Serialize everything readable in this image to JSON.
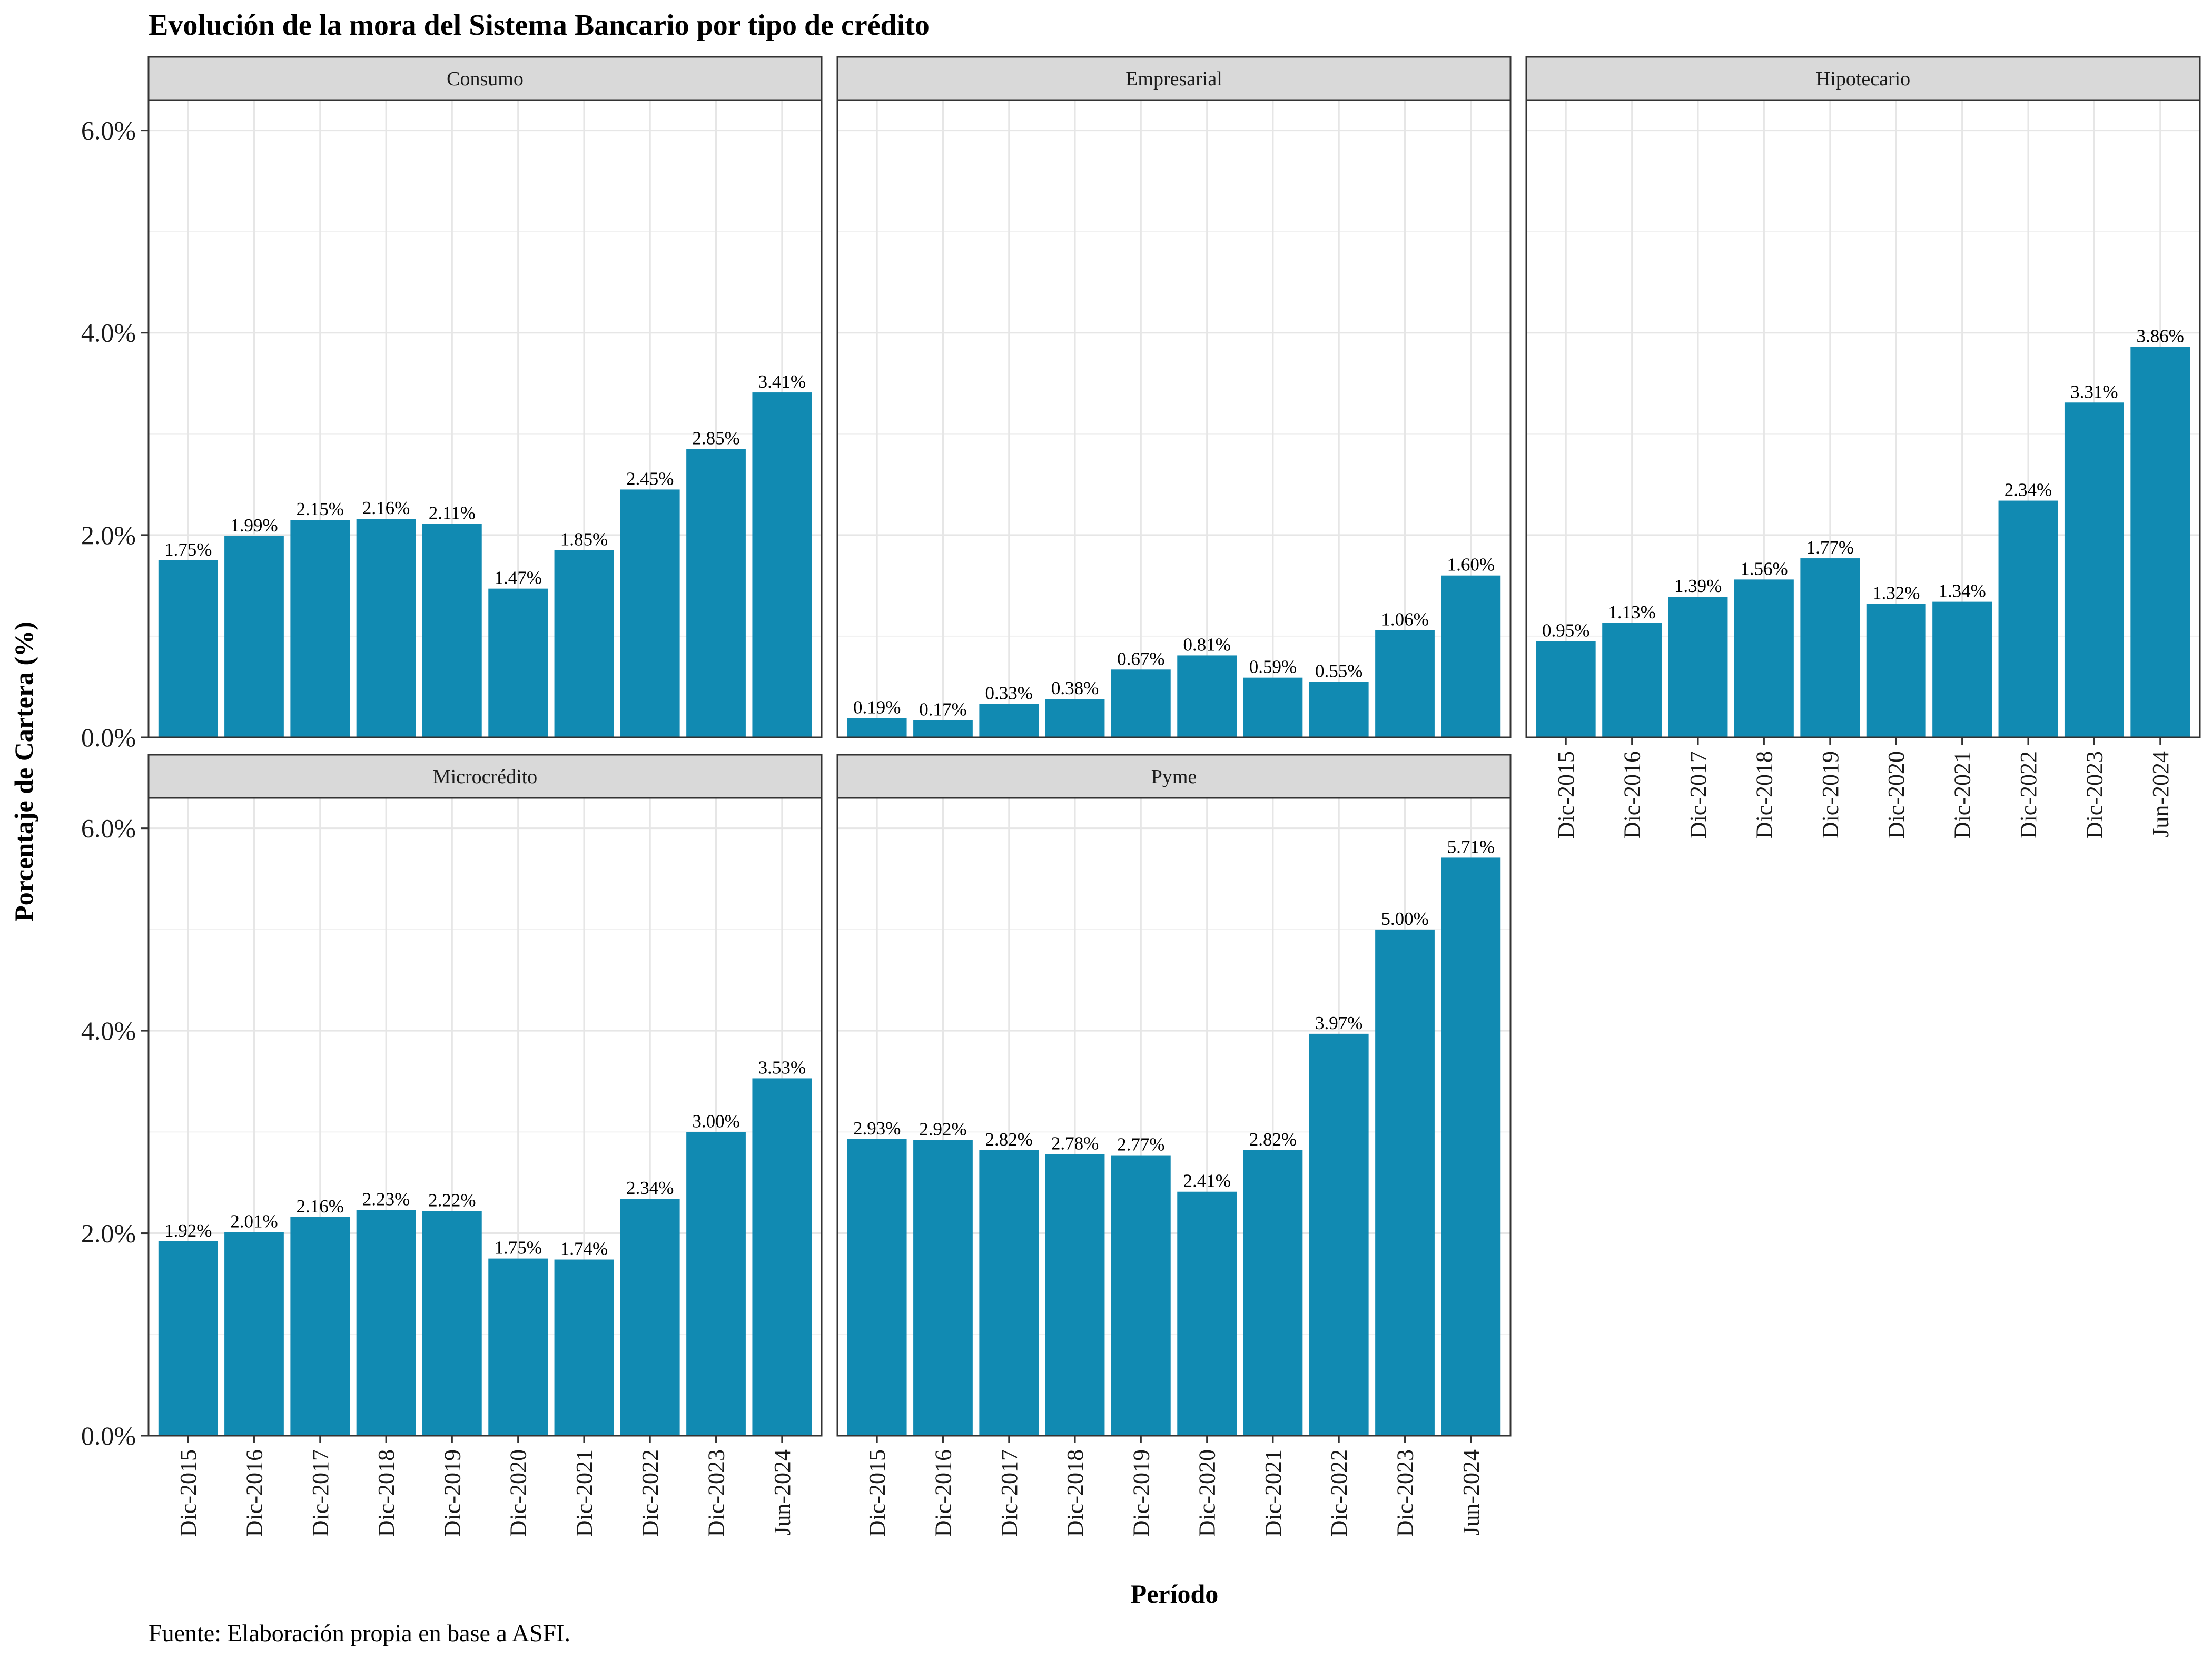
{
  "chart_data": {
    "type": "bar",
    "title": "Evolución de la mora del Sistema Bancario por tipo de crédito",
    "xlabel": "Período",
    "ylabel": "Porcentaje de Cartera (%)",
    "caption": "Fuente: Elaboración propia en base a ASFI.",
    "categories": [
      "Dic-2015",
      "Dic-2016",
      "Dic-2017",
      "Dic-2018",
      "Dic-2019",
      "Dic-2020",
      "Dic-2021",
      "Dic-2022",
      "Dic-2023",
      "Jun-2024"
    ],
    "ylim": [
      0,
      6.3
    ],
    "yticks": [
      0,
      2,
      4,
      6
    ],
    "ytick_labels": [
      "0.0%",
      "2.0%",
      "4.0%",
      "6.0%"
    ],
    "grid": true,
    "bar_color": "#118AB2",
    "strip_color": "#D9D9D9",
    "facets": [
      {
        "name": "Consumo",
        "values": [
          1.75,
          1.99,
          2.15,
          2.16,
          2.11,
          1.47,
          1.85,
          2.45,
          2.85,
          3.41
        ],
        "labels": [
          "1.75%",
          "1.99%",
          "2.15%",
          "2.16%",
          "2.11%",
          "1.47%",
          "1.85%",
          "2.45%",
          "2.85%",
          "3.41%"
        ]
      },
      {
        "name": "Empresarial",
        "values": [
          0.19,
          0.17,
          0.33,
          0.38,
          0.67,
          0.81,
          0.59,
          0.55,
          1.06,
          1.6
        ],
        "labels": [
          "0.19%",
          "0.17%",
          "0.33%",
          "0.38%",
          "0.67%",
          "0.81%",
          "0.59%",
          "0.55%",
          "1.06%",
          "1.60%"
        ]
      },
      {
        "name": "Hipotecario",
        "values": [
          0.95,
          1.13,
          1.39,
          1.56,
          1.77,
          1.32,
          1.34,
          2.34,
          3.31,
          3.86
        ],
        "labels": [
          "0.95%",
          "1.13%",
          "1.39%",
          "1.56%",
          "1.77%",
          "1.32%",
          "1.34%",
          "2.34%",
          "3.31%",
          "3.86%"
        ]
      },
      {
        "name": "Microcrédito",
        "values": [
          1.92,
          2.01,
          2.16,
          2.23,
          2.22,
          1.75,
          1.74,
          2.34,
          3.0,
          3.53
        ],
        "labels": [
          "1.92%",
          "2.01%",
          "2.16%",
          "2.23%",
          "2.22%",
          "1.75%",
          "1.74%",
          "2.34%",
          "3.00%",
          "3.53%"
        ]
      },
      {
        "name": "Pyme",
        "values": [
          2.93,
          2.92,
          2.82,
          2.78,
          2.77,
          2.41,
          2.82,
          3.97,
          5.0,
          5.71
        ],
        "labels": [
          "2.93%",
          "2.92%",
          "2.82%",
          "2.78%",
          "2.77%",
          "2.41%",
          "2.82%",
          "3.97%",
          "5.00%",
          "5.71%"
        ]
      }
    ]
  }
}
